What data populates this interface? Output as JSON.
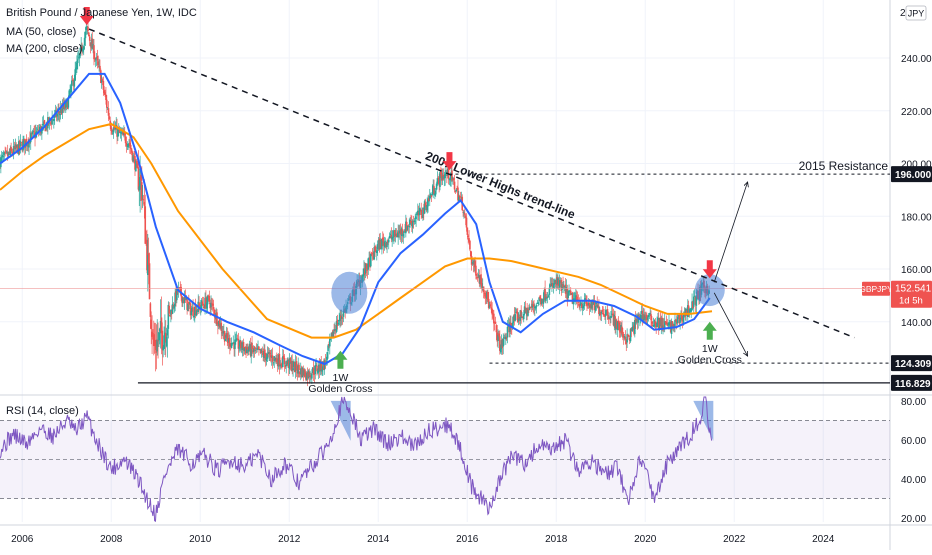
{
  "header": {
    "symbol_title": "British Pound / Japanese Yen, 1W, IDC",
    "ma50_label": "MA (50, close)",
    "ma200_label": "MA (200, close)",
    "currency": "JPY"
  },
  "rsi_panel": {
    "label": "RSI (14, close)",
    "ticks": [
      "80.00",
      "60.00",
      "40.00",
      "20.00"
    ]
  },
  "price_axis": {
    "ticks": [
      "240.000",
      "220.000",
      "200.000",
      "180.000",
      "160.000",
      "140.000"
    ],
    "top_partial": "2"
  },
  "time_axis": {
    "ticks": [
      "2006",
      "2008",
      "2010",
      "2012",
      "2014",
      "2016",
      "2018",
      "2020",
      "2022",
      "2024"
    ]
  },
  "badges": {
    "resistance": "196.000",
    "current_symbol": "GBPJPY",
    "current_price": "152.541",
    "current_time": "1d 5h",
    "support": "124.309",
    "low": "116.829"
  },
  "annotations": {
    "trendline": "2007 Lower Highs trend-line",
    "resistance": "2015 Resistance",
    "golden_cross_1_tf": "1W",
    "golden_cross_1_label": "Golden Cross",
    "golden_cross_2_tf": "1W",
    "golden_cross_2_label": "Golden Cross"
  },
  "colors": {
    "ma50": "#2962ff",
    "ma200": "#ff9800",
    "up": "#26a69a",
    "down": "#ef5350",
    "rsi": "#7e57c2",
    "arrow_down": "#f23645",
    "arrow_up": "#4caf50",
    "circle": "#4a7fd6"
  },
  "chart_data": [
    {
      "type": "candlestick",
      "title": "British Pound / Japanese Yen, 1W, IDC",
      "xlim": [
        2005.5,
        2025.5
      ],
      "ylim": [
        113,
        262
      ],
      "price_series": {
        "name": "GBPJPY",
        "x": [
          2005.5,
          2006.0,
          2006.5,
          2007.0,
          2007.45,
          2007.75,
          2008.0,
          2008.4,
          2008.7,
          2008.95,
          2009.2,
          2009.5,
          2009.8,
          2010.2,
          2010.6,
          2011.0,
          2011.5,
          2012.0,
          2012.4,
          2012.8,
          2013.0,
          2013.3,
          2013.6,
          2014.0,
          2014.5,
          2015.0,
          2015.4,
          2015.6,
          2015.9,
          2016.1,
          2016.4,
          2016.75,
          2017.0,
          2017.5,
          2018.0,
          2018.4,
          2018.8,
          2019.2,
          2019.6,
          2019.9,
          2020.2,
          2020.6,
          2021.0,
          2021.3,
          2021.45
        ],
        "y": [
          201,
          207,
          214,
          222,
          251,
          234,
          214,
          208,
          190,
          130,
          137,
          152,
          144,
          148,
          133,
          130,
          127,
          124,
          120,
          124,
          137,
          146,
          156,
          169,
          174,
          182,
          195,
          196,
          184,
          163,
          152,
          130,
          140,
          146,
          155,
          148,
          146,
          143,
          133,
          143,
          140,
          138,
          145,
          153,
          152.5
        ]
      },
      "ma50": {
        "name": "MA (50, close)",
        "x": [
          2005.5,
          2006.0,
          2006.5,
          2007.0,
          2007.5,
          2007.85,
          2008.2,
          2008.6,
          2009.0,
          2009.5,
          2010.0,
          2010.6,
          2011.2,
          2011.8,
          2012.3,
          2012.8,
          2013.2,
          2013.6,
          2014.0,
          2014.5,
          2015.0,
          2015.5,
          2015.85,
          2016.2,
          2016.5,
          2016.8,
          2017.2,
          2017.7,
          2018.2,
          2018.8,
          2019.3,
          2019.8,
          2020.2,
          2020.7,
          2021.1,
          2021.45
        ],
        "y": [
          200,
          206,
          214,
          224,
          234,
          234,
          223,
          202,
          176,
          152,
          145,
          140,
          136,
          131,
          127,
          124,
          128,
          138,
          155,
          166,
          173,
          181,
          186,
          177,
          155,
          140,
          136,
          143,
          148,
          148,
          146,
          142,
          137,
          138,
          141,
          149
        ]
      },
      "ma200": {
        "name": "MA (200, close)",
        "x": [
          2005.5,
          2006.0,
          2006.5,
          2007.0,
          2007.5,
          2008.0,
          2008.5,
          2008.9,
          2009.5,
          2010.5,
          2011.5,
          2012.5,
          2013.0,
          2013.5,
          2014.0,
          2014.5,
          2015.0,
          2015.5,
          2016.0,
          2016.5,
          2017.0,
          2017.5,
          2018.0,
          2018.5,
          2019.0,
          2019.5,
          2020.0,
          2020.5,
          2021.0,
          2021.5
        ],
        "y": [
          190,
          197,
          203,
          208,
          213,
          215,
          210,
          200,
          182,
          160,
          141,
          134,
          134,
          137,
          143,
          149,
          155,
          161,
          164,
          164,
          163,
          161,
          159,
          157,
          154,
          150,
          146,
          143,
          143,
          144
        ]
      },
      "trendline": {
        "name": "2007 Lower Highs trend-line",
        "x": [
          2007.5,
          2024.7
        ],
        "y": [
          251,
          134
        ]
      },
      "levels": [
        {
          "name": "2015 Resistance",
          "y": 196.0,
          "x_start": 2015.6
        },
        {
          "y": 124.309,
          "x_start": 2016.5
        },
        {
          "y": 116.829,
          "x_start": 2008.6
        },
        {
          "name": "GBPJPY",
          "y": 152.541
        }
      ],
      "projections": [
        {
          "x": [
            2021.55,
            2022.3
          ],
          "y": [
            155,
            193
          ]
        },
        {
          "x": [
            2021.55,
            2022.3
          ],
          "y": [
            151,
            127
          ]
        }
      ],
      "markers_down": [
        {
          "x": 2007.45,
          "y": 251
        },
        {
          "x": 2015.6,
          "y": 196
        },
        {
          "x": 2021.45,
          "y": 155
        }
      ],
      "markers_up": [
        {
          "x": 2013.15,
          "y": 129
        },
        {
          "x": 2021.45,
          "y": 140
        }
      ],
      "highlight_circles": [
        {
          "x": 2013.35,
          "y": 151
        },
        {
          "x": 2021.45,
          "y": 152
        }
      ]
    },
    {
      "type": "line",
      "title": "RSI (14, close)",
      "xlim": [
        2005.5,
        2025.5
      ],
      "ylim": [
        18,
        82
      ],
      "ticks": [
        20,
        40,
        60,
        80
      ],
      "bands": [
        30,
        50,
        70
      ],
      "series": [
        {
          "name": "RSI (14, close)",
          "x": [
            2005.5,
            2005.8,
            2006.1,
            2006.4,
            2006.7,
            2007.0,
            2007.2,
            2007.45,
            2007.7,
            2008.0,
            2008.3,
            2008.6,
            2008.8,
            2009.0,
            2009.2,
            2009.5,
            2009.8,
            2010.1,
            2010.4,
            2010.7,
            2011.0,
            2011.3,
            2011.6,
            2011.9,
            2012.2,
            2012.5,
            2012.8,
            2013.0,
            2013.2,
            2013.4,
            2013.6,
            2013.9,
            2014.2,
            2014.5,
            2014.8,
            2015.1,
            2015.4,
            2015.6,
            2015.9,
            2016.1,
            2016.3,
            2016.5,
            2016.7,
            2017.0,
            2017.3,
            2017.6,
            2017.9,
            2018.2,
            2018.5,
            2018.8,
            2019.1,
            2019.4,
            2019.6,
            2019.9,
            2020.2,
            2020.5,
            2020.8,
            2021.0,
            2021.2,
            2021.35,
            2021.5
          ],
          "y": [
            55,
            63,
            58,
            66,
            62,
            70,
            64,
            72,
            58,
            45,
            50,
            40,
            30,
            22,
            42,
            55,
            48,
            52,
            44,
            50,
            46,
            53,
            40,
            48,
            38,
            46,
            55,
            66,
            80,
            74,
            60,
            66,
            58,
            62,
            56,
            64,
            67,
            68,
            52,
            36,
            30,
            25,
            38,
            52,
            48,
            57,
            54,
            60,
            44,
            50,
            42,
            46,
            28,
            52,
            30,
            48,
            56,
            62,
            70,
            80,
            56
          ]
        }
      ]
    }
  ]
}
